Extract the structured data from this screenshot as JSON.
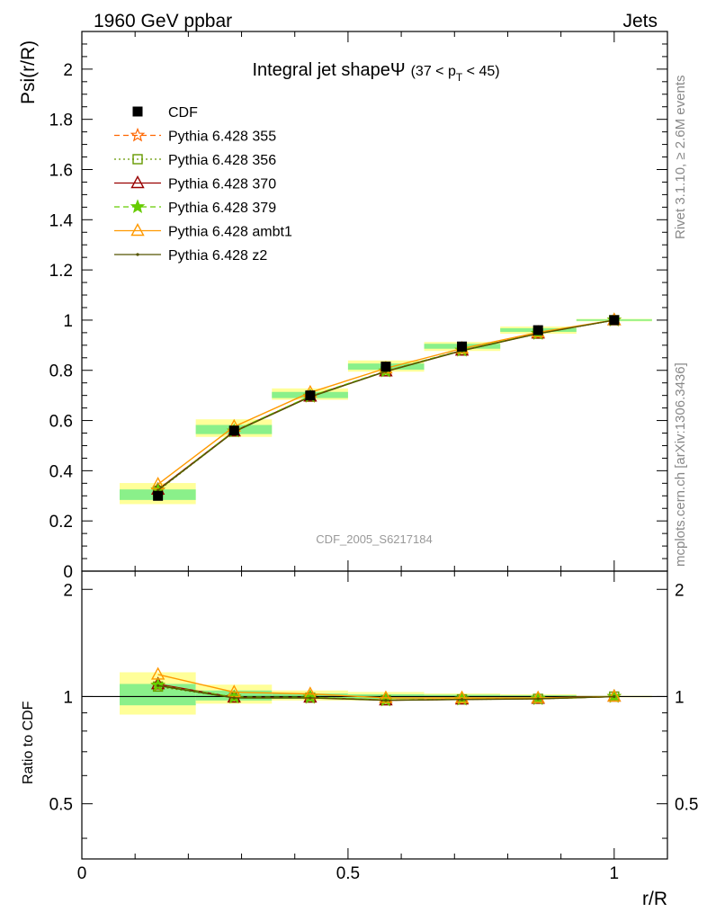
{
  "header": {
    "left": "1960 GeV ppbar",
    "right": "Jets"
  },
  "side_labels": {
    "rivet": "Rivet 3.1.10, ≥ 2.6M events",
    "mcplots": "mcplots.cern.ch [arXiv:1306.3436]"
  },
  "colors": {
    "cdf": "#000000",
    "band_green": "#8af08a",
    "band_yellow": "#ffff99"
  },
  "chart_data": {
    "type": "line",
    "title_main": "Integral jet shape",
    "title_symbol": "Ψ",
    "title_range_open": "(37 < p",
    "title_range_sub": "T",
    "title_range_close": " < 45)",
    "analysis_label": "CDF_2005_S6217184",
    "xlabel": "r/R",
    "ylabel": "Psi(r/R)",
    "ratio_ylabel": "Ratio to CDF",
    "xlim": [
      0,
      1.1
    ],
    "ylim": [
      0,
      2.15
    ],
    "ratio_ylim": [
      0.35,
      2.25
    ],
    "ratio_log_scale": true,
    "x_ticks": [
      "0",
      "0.5",
      "1"
    ],
    "y_ticks": [
      "0",
      "0.2",
      "0.4",
      "0.6",
      "0.8",
      "1",
      "1.2",
      "1.4",
      "1.6",
      "1.8",
      "2"
    ],
    "ratio_ticks": [
      "0.5",
      "1",
      "2"
    ],
    "legend_position": "top-left",
    "x": [
      0.143,
      0.286,
      0.429,
      0.571,
      0.714,
      0.857,
      1.0
    ],
    "bin_edges": [
      0.071,
      0.214,
      0.357,
      0.5,
      0.643,
      0.786,
      0.929,
      1.071
    ],
    "data": {
      "name": "CDF",
      "values": [
        0.3,
        0.56,
        0.7,
        0.815,
        0.895,
        0.96,
        1.0
      ],
      "green_band": [
        [
          0.945,
          1.085
        ],
        [
          0.975,
          1.04
        ],
        [
          0.985,
          1.02
        ],
        [
          0.985,
          1.015
        ],
        [
          0.99,
          1.012
        ],
        [
          0.993,
          1.008
        ],
        [
          0.997,
          1.003
        ]
      ],
      "yellow_band": [
        [
          0.89,
          1.17
        ],
        [
          0.955,
          1.08
        ],
        [
          0.975,
          1.04
        ],
        [
          0.975,
          1.03
        ],
        [
          0.98,
          1.02
        ],
        [
          0.985,
          1.015
        ],
        [
          0.995,
          1.005
        ]
      ]
    },
    "series": [
      {
        "name": "Pythia 6.428 355",
        "color": "#ff6600",
        "dash": "6,4",
        "marker": "star-open",
        "values": [
          0.322,
          0.558,
          0.696,
          0.797,
          0.88,
          0.947,
          1.0
        ]
      },
      {
        "name": "Pythia 6.428 356",
        "color": "#669900",
        "dash": "2,3",
        "marker": "square-open",
        "values": [
          0.32,
          0.556,
          0.695,
          0.796,
          0.879,
          0.946,
          1.0
        ]
      },
      {
        "name": "Pythia 6.428 370",
        "color": "#990000",
        "dash": "",
        "marker": "triangle-open",
        "values": [
          0.325,
          0.557,
          0.696,
          0.796,
          0.879,
          0.947,
          1.0
        ]
      },
      {
        "name": "Pythia 6.428 379",
        "color": "#66cc00",
        "dash": "6,4",
        "marker": "star-filled",
        "values": [
          0.323,
          0.558,
          0.697,
          0.797,
          0.88,
          0.947,
          1.0
        ]
      },
      {
        "name": "Pythia 6.428 ambt1",
        "color": "#ff9900",
        "dash": "",
        "marker": "triangle-open",
        "values": [
          0.346,
          0.576,
          0.712,
          0.808,
          0.887,
          0.951,
          1.0
        ]
      },
      {
        "name": "Pythia 6.428 z2",
        "color": "#555500",
        "dash": "",
        "marker": "dot",
        "values": [
          0.322,
          0.555,
          0.694,
          0.795,
          0.878,
          0.946,
          1.0
        ]
      }
    ]
  }
}
